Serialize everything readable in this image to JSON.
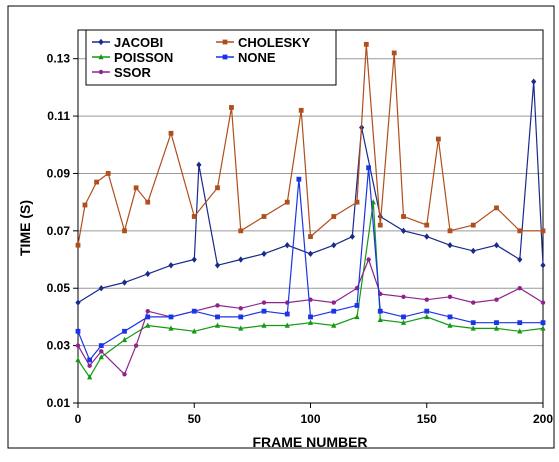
{
  "chart_data": {
    "type": "line",
    "xlabel": "FRAME NUMBER",
    "ylabel": "TIME (S)",
    "xlim": [
      0,
      200
    ],
    "ylim": [
      0.01,
      0.14
    ],
    "x_ticks": [
      "0",
      "50",
      "100",
      "150",
      "200"
    ],
    "y_ticks": [
      "0.01",
      "0.03",
      "0.05",
      "0.07",
      "0.09",
      "0.11",
      "0.13"
    ],
    "grid": "horizontal",
    "legend_position": "top-left",
    "series": [
      {
        "name": "JACOBI",
        "color": "#1a2a8c",
        "marker": "diamond",
        "x": [
          0,
          10,
          20,
          30,
          40,
          50,
          52,
          60,
          70,
          80,
          90,
          100,
          110,
          118,
          122,
          130,
          140,
          150,
          160,
          170,
          180,
          190,
          196,
          200
        ],
        "y": [
          0.045,
          0.05,
          0.052,
          0.055,
          0.058,
          0.06,
          0.093,
          0.058,
          0.06,
          0.062,
          0.065,
          0.062,
          0.065,
          0.068,
          0.106,
          0.075,
          0.07,
          0.068,
          0.065,
          0.063,
          0.065,
          0.06,
          0.122,
          0.058
        ]
      },
      {
        "name": "POISSON",
        "color": "#139a13",
        "marker": "triangle",
        "x": [
          0,
          5,
          10,
          20,
          30,
          40,
          50,
          60,
          70,
          80,
          90,
          100,
          110,
          120,
          127,
          130,
          140,
          150,
          160,
          170,
          180,
          190,
          200
        ],
        "y": [
          0.025,
          0.019,
          0.026,
          0.032,
          0.037,
          0.036,
          0.035,
          0.037,
          0.036,
          0.037,
          0.037,
          0.038,
          0.037,
          0.04,
          0.08,
          0.039,
          0.038,
          0.04,
          0.037,
          0.036,
          0.036,
          0.035,
          0.036
        ]
      },
      {
        "name": "SSOR",
        "color": "#8e238e",
        "marker": "circle",
        "x": [
          0,
          5,
          10,
          20,
          25,
          30,
          40,
          50,
          60,
          70,
          80,
          90,
          100,
          110,
          120,
          125,
          130,
          140,
          150,
          160,
          170,
          180,
          190,
          200
        ],
        "y": [
          0.03,
          0.023,
          0.028,
          0.02,
          0.03,
          0.042,
          0.04,
          0.042,
          0.044,
          0.043,
          0.045,
          0.045,
          0.046,
          0.045,
          0.05,
          0.06,
          0.048,
          0.047,
          0.046,
          0.047,
          0.045,
          0.046,
          0.05,
          0.045
        ]
      },
      {
        "name": "CHOLESKY",
        "color": "#b04e1c",
        "marker": "square",
        "x": [
          0,
          3,
          8,
          13,
          20,
          25,
          30,
          40,
          50,
          60,
          66,
          70,
          80,
          90,
          96,
          100,
          110,
          120,
          124,
          130,
          136,
          140,
          150,
          155,
          160,
          170,
          180,
          190,
          200
        ],
        "y": [
          0.065,
          0.079,
          0.087,
          0.09,
          0.07,
          0.085,
          0.08,
          0.104,
          0.075,
          0.085,
          0.113,
          0.07,
          0.075,
          0.08,
          0.112,
          0.068,
          0.075,
          0.08,
          0.135,
          0.072,
          0.132,
          0.075,
          0.072,
          0.102,
          0.07,
          0.072,
          0.078,
          0.07,
          0.07
        ]
      },
      {
        "name": "NONE",
        "color": "#1a35e6",
        "marker": "square",
        "x": [
          0,
          5,
          10,
          20,
          30,
          40,
          50,
          60,
          70,
          80,
          90,
          95,
          100,
          110,
          120,
          125,
          130,
          140,
          150,
          160,
          170,
          180,
          190,
          200
        ],
        "y": [
          0.035,
          0.025,
          0.03,
          0.035,
          0.04,
          0.04,
          0.042,
          0.04,
          0.04,
          0.042,
          0.041,
          0.088,
          0.04,
          0.042,
          0.044,
          0.092,
          0.042,
          0.04,
          0.042,
          0.04,
          0.038,
          0.038,
          0.038,
          0.038
        ]
      }
    ]
  }
}
